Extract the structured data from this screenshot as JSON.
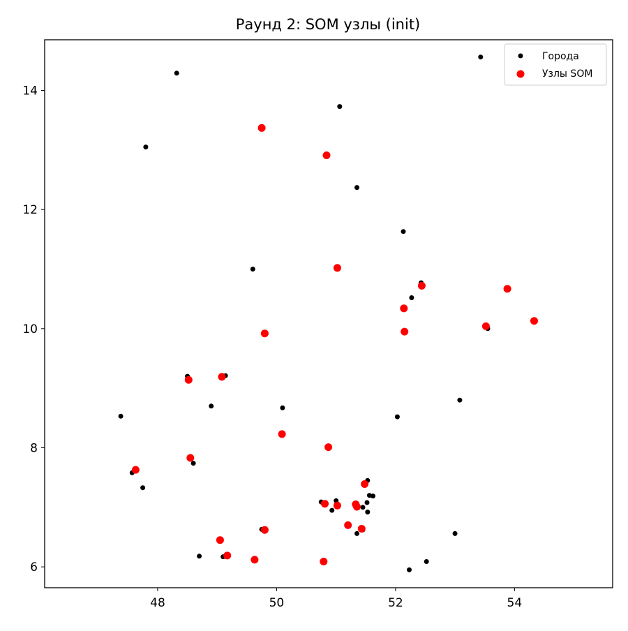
{
  "chart_data": {
    "type": "scatter",
    "title": "Раунд 2: SOM узлы (init)",
    "xlabel": "",
    "ylabel": "",
    "xlim": [
      46.1,
      55.65
    ],
    "ylim": [
      5.65,
      14.85
    ],
    "xticks": [
      48,
      50,
      52,
      54
    ],
    "yticks": [
      6,
      8,
      10,
      12,
      14
    ],
    "grid": false,
    "legend_position": "top-right",
    "series": [
      {
        "name": "Города",
        "color": "#000000",
        "marker": "circle-small",
        "points": [
          [
            53.43,
            14.56
          ],
          [
            48.32,
            14.29
          ],
          [
            51.06,
            13.73
          ],
          [
            47.8,
            13.05
          ],
          [
            51.35,
            12.37
          ],
          [
            52.13,
            11.63
          ],
          [
            49.6,
            11.0
          ],
          [
            52.43,
            10.77
          ],
          [
            52.27,
            10.52
          ],
          [
            53.55,
            10.0
          ],
          [
            48.5,
            9.2
          ],
          [
            49.14,
            9.21
          ],
          [
            48.9,
            8.7
          ],
          [
            50.1,
            8.67
          ],
          [
            47.38,
            8.53
          ],
          [
            52.03,
            8.52
          ],
          [
            53.08,
            8.8
          ],
          [
            47.57,
            7.58
          ],
          [
            48.6,
            7.74
          ],
          [
            47.75,
            7.33
          ],
          [
            51.53,
            7.45
          ],
          [
            51.56,
            7.2
          ],
          [
            51.62,
            7.19
          ],
          [
            50.75,
            7.09
          ],
          [
            51.0,
            7.11
          ],
          [
            51.52,
            7.08
          ],
          [
            51.45,
            7.0
          ],
          [
            50.93,
            6.95
          ],
          [
            51.53,
            6.92
          ],
          [
            49.75,
            6.63
          ],
          [
            51.35,
            6.56
          ],
          [
            51.45,
            6.62
          ],
          [
            53.0,
            6.56
          ],
          [
            48.7,
            6.18
          ],
          [
            49.1,
            6.17
          ],
          [
            52.52,
            6.09
          ],
          [
            52.23,
            5.95
          ]
        ]
      },
      {
        "name": "Узлы SOM",
        "color": "#ff0000",
        "marker": "circle-large",
        "points": [
          [
            49.75,
            13.37
          ],
          [
            50.84,
            12.91
          ],
          [
            51.02,
            11.02
          ],
          [
            52.44,
            10.72
          ],
          [
            53.88,
            10.67
          ],
          [
            52.14,
            10.34
          ],
          [
            53.52,
            10.04
          ],
          [
            54.33,
            10.13
          ],
          [
            49.8,
            9.92
          ],
          [
            52.15,
            9.95
          ],
          [
            48.52,
            9.14
          ],
          [
            49.08,
            9.19
          ],
          [
            50.09,
            8.23
          ],
          [
            50.87,
            8.01
          ],
          [
            47.63,
            7.63
          ],
          [
            48.55,
            7.83
          ],
          [
            51.48,
            7.39
          ],
          [
            50.81,
            7.06
          ],
          [
            51.02,
            7.03
          ],
          [
            51.33,
            7.05
          ],
          [
            51.35,
            7.01
          ],
          [
            51.2,
            6.7
          ],
          [
            51.43,
            6.64
          ],
          [
            49.8,
            6.62
          ],
          [
            49.05,
            6.45
          ],
          [
            49.17,
            6.19
          ],
          [
            49.63,
            6.12
          ],
          [
            50.79,
            6.09
          ]
        ]
      }
    ]
  }
}
